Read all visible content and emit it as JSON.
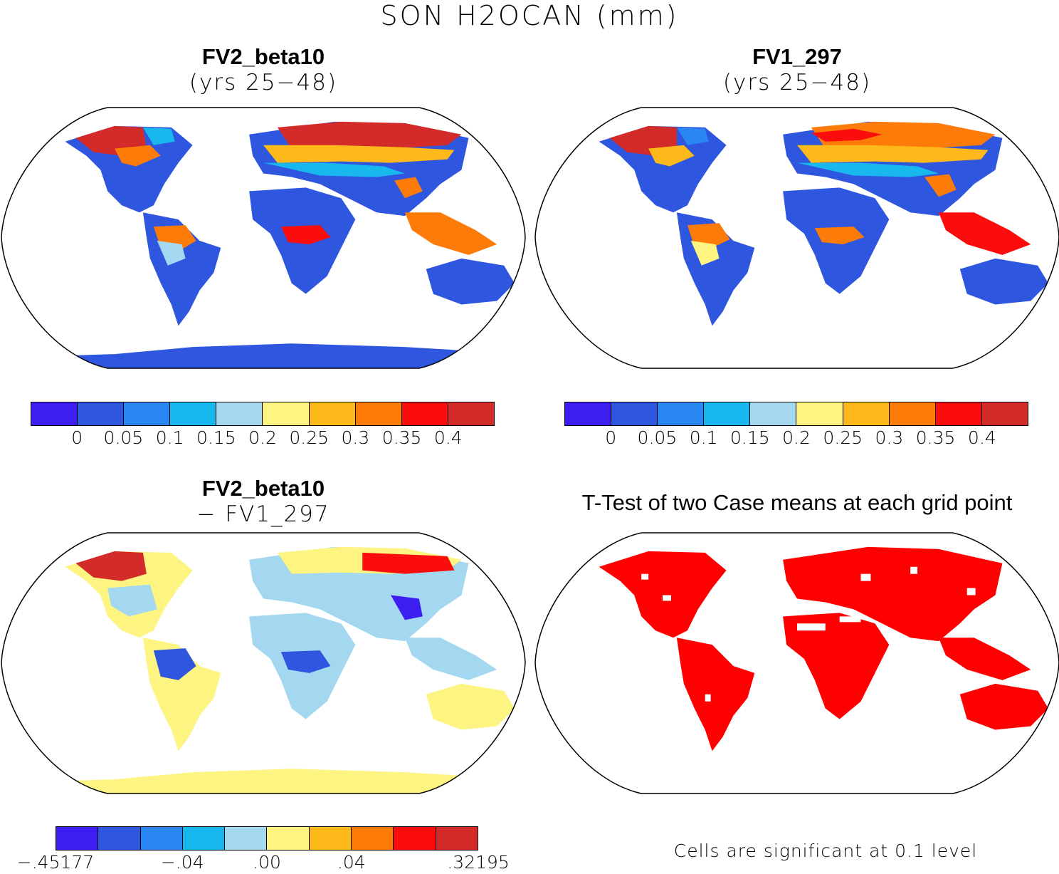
{
  "figure": {
    "title": "SON H2OCAN (mm)"
  },
  "panels": [
    {
      "id": "p1",
      "title": "FV2_beta10",
      "subtitle": "(yrs 25−48)"
    },
    {
      "id": "p2",
      "title": "FV1_297",
      "subtitle": "(yrs 25−48)"
    },
    {
      "id": "p3",
      "title": "FV2_beta10",
      "subtitle": "− FV1_297"
    },
    {
      "id": "p4",
      "title": "T-Test of two Case means at each grid point",
      "note": "Cells are significant at 0.1 level"
    }
  ],
  "colorbars": {
    "abs": {
      "colors": [
        "#3c1ef0",
        "#2f56de",
        "#2a86f2",
        "#18b8ef",
        "#a3d8f0",
        "#fdf481",
        "#fdb81a",
        "#fd7b08",
        "#fb0d0d",
        "#d32a2a"
      ],
      "labels": [
        "0",
        "0.05",
        "0.1",
        "0.15",
        "0.2",
        "0.25",
        "0.3",
        "0.35",
        "0.4"
      ]
    },
    "diff": {
      "colors": [
        "#3c1ef0",
        "#2f56de",
        "#2a86f2",
        "#18b8ef",
        "#a3d8f0",
        "#fdf481",
        "#fdb81a",
        "#fd7b08",
        "#fb0d0d",
        "#d32a2a"
      ],
      "labels": [
        "−.45177",
        "−.04",
        ".00",
        ".04",
        ".32195"
      ]
    }
  },
  "legend_fill_colors": {
    "land": "#2f56de",
    "sig": "#ff0000",
    "diff_land": "#a3d8f0"
  }
}
